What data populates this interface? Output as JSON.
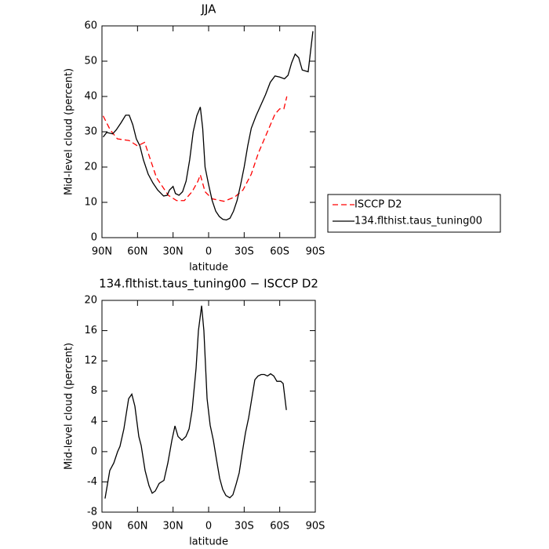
{
  "chart_data": [
    {
      "type": "line",
      "title": "JJA",
      "x_label": "latitude",
      "y_label": "Mid-level cloud (percent)",
      "xlim": [
        90,
        -90
      ],
      "ylim": [
        0,
        60
      ],
      "xticks": [
        {
          "value": 90,
          "label": "90N"
        },
        {
          "value": 60,
          "label": "60N"
        },
        {
          "value": 30,
          "label": "30N"
        },
        0,
        {
          "value": -30,
          "label": "30S"
        },
        {
          "value": -60,
          "label": "60S"
        },
        {
          "value": -90,
          "label": "90S"
        }
      ],
      "yticks": [
        0,
        10,
        20,
        30,
        40,
        50,
        60
      ],
      "legend": "right",
      "series": [
        {
          "name": "ISCCP D2",
          "color": "#ff0000",
          "line_style": "dashed",
          "x": [
            89,
            83,
            77,
            67,
            60,
            54,
            44,
            34,
            27,
            20.5,
            14,
            9,
            7,
            3,
            -3,
            -13,
            -22,
            -29,
            -36,
            -42,
            -49,
            -56,
            -60,
            -63.5,
            -66
          ],
          "values": [
            34.5,
            30.5,
            28,
            27.5,
            26,
            27,
            17,
            12,
            10.5,
            10.5,
            13,
            16,
            17.8,
            13,
            11,
            10.3,
            11.5,
            13.5,
            18,
            24,
            29.5,
            35,
            36.5,
            36.5,
            40
          ]
        },
        {
          "name": "134.flthist.taus_tuning00",
          "color": "#000000",
          "line_style": "solid",
          "x": [
            89,
            86,
            81,
            78,
            74,
            70,
            67,
            64,
            61,
            58,
            55,
            51,
            47,
            43,
            38,
            35,
            33,
            30,
            28,
            25,
            22,
            19,
            16,
            13,
            10,
            7,
            5,
            3,
            0,
            -3,
            -6,
            -9,
            -12,
            -15,
            -18,
            -21,
            -24,
            -27,
            -30,
            -33,
            -36,
            -40,
            -44,
            -48,
            -52,
            -56,
            -60,
            -64,
            -67,
            -70,
            -73,
            -76,
            -79,
            -84,
            -88
          ],
          "values": [
            28.5,
            29.8,
            29.4,
            30.5,
            32.5,
            34.7,
            34.7,
            32,
            28,
            26,
            22,
            18,
            15.5,
            13.5,
            11.8,
            12,
            13.5,
            14.5,
            12.5,
            12,
            13,
            16,
            22,
            30,
            34.5,
            37,
            31,
            20,
            15,
            10.5,
            7.5,
            6,
            5.2,
            5,
            5.5,
            7.5,
            10.5,
            15,
            20,
            26,
            31,
            34.5,
            37.5,
            40.5,
            44,
            45.8,
            45.5,
            45,
            46,
            49.5,
            52,
            51,
            47.5,
            47,
            58.5
          ]
        }
      ]
    },
    {
      "type": "line",
      "title": "134.flthist.taus_tuning00 − ISCCP D2",
      "x_label": "latitude",
      "y_label": "Mid-level cloud (percent)",
      "xlim": [
        90,
        -90
      ],
      "ylim": [
        -8,
        20
      ],
      "xticks": [
        {
          "value": 90,
          "label": "90N"
        },
        {
          "value": 60,
          "label": "60N"
        },
        {
          "value": 30,
          "label": "30N"
        },
        0,
        {
          "value": -30,
          "label": "30S"
        },
        {
          "value": -60,
          "label": "60S"
        },
        {
          "value": -90,
          "label": "90S"
        }
      ],
      "yticks": [
        -8,
        -4,
        0,
        4,
        8,
        12,
        16,
        20
      ],
      "series": [
        {
          "color": "#000000",
          "line_style": "solid",
          "x": [
            87.4,
            83.4,
            80,
            76.8,
            74.8,
            71.5,
            67.5,
            64.8,
            62.2,
            58.9,
            56.9,
            53.6,
            50.3,
            47.6,
            45,
            41.7,
            37.7,
            34.4,
            31,
            28.4,
            25.8,
            22.5,
            19.2,
            16.5,
            13.9,
            10.6,
            8.6,
            5.9,
            4,
            1.3,
            -1.3,
            -4,
            -6.6,
            -9.3,
            -11.9,
            -14.6,
            -17.9,
            -20.5,
            -23.2,
            -25.8,
            -28.5,
            -31.1,
            -33.8,
            -36.4,
            -39,
            -41.7,
            -44.4,
            -47,
            -49.7,
            -52.3,
            -55,
            -57.6,
            -60.9,
            -62.9,
            -65.6
          ],
          "values": [
            -6.2,
            -2.5,
            -1.5,
            0,
            0.7,
            3,
            7,
            7.6,
            6,
            2,
            0.8,
            -2.5,
            -4.5,
            -5.5,
            -5.2,
            -4.2,
            -3.8,
            -1.5,
            1.5,
            3.4,
            2,
            1.5,
            2,
            3,
            5.5,
            11,
            16,
            19.3,
            16,
            7,
            3.5,
            1.5,
            -1,
            -3.5,
            -5,
            -5.8,
            -6.1,
            -5.7,
            -4.3,
            -2.8,
            0,
            2.5,
            4.5,
            7,
            9.5,
            10,
            10.2,
            10.2,
            10,
            10.3,
            10,
            9.3,
            9.3,
            9,
            5.5
          ]
        }
      ]
    }
  ]
}
